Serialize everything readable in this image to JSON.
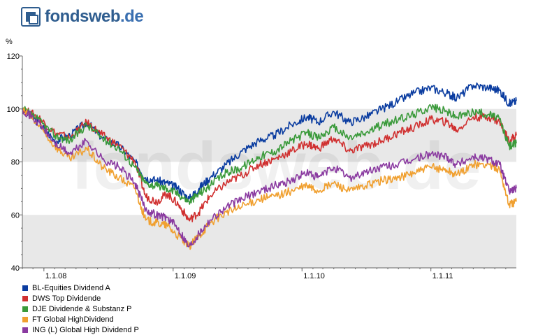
{
  "logo": {
    "brand": "fondsweb",
    "tld": ".de"
  },
  "chart_data": {
    "type": "line",
    "ylabel": "%",
    "ylim": [
      40,
      120
    ],
    "y_ticks": [
      40,
      60,
      80,
      100,
      120
    ],
    "x_ticks": [
      {
        "date": "2008-01-01",
        "label": "1.1.08"
      },
      {
        "date": "2009-01-01",
        "label": "1.1.09"
      },
      {
        "date": "2010-01-01",
        "label": "1.1.10"
      },
      {
        "date": "2011-01-01",
        "label": "1.1.11"
      }
    ],
    "xlim": [
      "2007-11-01",
      "2011-08-31"
    ],
    "grid": "horizontal bands",
    "watermark": "fondsweb.de",
    "legend_position": "bottom-left",
    "series": [
      {
        "name": "BL-Equities Dividend A",
        "color": "#0a3ca0",
        "points": [
          [
            "2007-11-01",
            100
          ],
          [
            "2007-12-15",
            95
          ],
          [
            "2008-02-01",
            88
          ],
          [
            "2008-03-15",
            90
          ],
          [
            "2008-05-01",
            95
          ],
          [
            "2008-06-15",
            89
          ],
          [
            "2008-08-01",
            86
          ],
          [
            "2008-09-15",
            80
          ],
          [
            "2008-10-15",
            74
          ],
          [
            "2008-11-15",
            73
          ],
          [
            "2008-12-15",
            72
          ],
          [
            "2009-01-15",
            70
          ],
          [
            "2009-02-15",
            66
          ],
          [
            "2009-03-15",
            70
          ],
          [
            "2009-04-15",
            74
          ],
          [
            "2009-06-01",
            79
          ],
          [
            "2009-07-15",
            84
          ],
          [
            "2009-09-01",
            88
          ],
          [
            "2009-10-15",
            90
          ],
          [
            "2009-12-01",
            94
          ],
          [
            "2010-01-15",
            97
          ],
          [
            "2010-02-15",
            95
          ],
          [
            "2010-04-01",
            99
          ],
          [
            "2010-05-15",
            95
          ],
          [
            "2010-07-01",
            97
          ],
          [
            "2010-08-15",
            100
          ],
          [
            "2010-10-01",
            103
          ],
          [
            "2010-11-15",
            106
          ],
          [
            "2011-01-01",
            108
          ],
          [
            "2011-02-15",
            106
          ],
          [
            "2011-03-15",
            104
          ],
          [
            "2011-05-01",
            109
          ],
          [
            "2011-06-15",
            108
          ],
          [
            "2011-07-15",
            107
          ],
          [
            "2011-08-10",
            102
          ],
          [
            "2011-08-31",
            103
          ]
        ]
      },
      {
        "name": "DWS Top Dividende",
        "color": "#d03030",
        "points": [
          [
            "2007-11-01",
            100
          ],
          [
            "2007-12-15",
            97
          ],
          [
            "2008-02-01",
            91
          ],
          [
            "2008-03-15",
            89
          ],
          [
            "2008-05-01",
            95
          ],
          [
            "2008-06-15",
            90
          ],
          [
            "2008-08-01",
            86
          ],
          [
            "2008-09-15",
            80
          ],
          [
            "2008-10-15",
            67
          ],
          [
            "2008-11-15",
            65
          ],
          [
            "2008-12-15",
            68
          ],
          [
            "2009-01-15",
            64
          ],
          [
            "2009-02-15",
            58
          ],
          [
            "2009-03-15",
            61
          ],
          [
            "2009-04-15",
            67
          ],
          [
            "2009-06-01",
            72
          ],
          [
            "2009-07-15",
            75
          ],
          [
            "2009-09-01",
            79
          ],
          [
            "2009-10-15",
            81
          ],
          [
            "2009-12-01",
            84
          ],
          [
            "2010-01-15",
            87
          ],
          [
            "2010-02-15",
            85
          ],
          [
            "2010-04-01",
            89
          ],
          [
            "2010-05-15",
            84
          ],
          [
            "2010-07-01",
            86
          ],
          [
            "2010-08-15",
            88
          ],
          [
            "2010-10-01",
            91
          ],
          [
            "2010-11-15",
            93
          ],
          [
            "2011-01-01",
            96
          ],
          [
            "2011-02-15",
            95
          ],
          [
            "2011-03-15",
            92
          ],
          [
            "2011-05-01",
            97
          ],
          [
            "2011-06-15",
            97
          ],
          [
            "2011-07-15",
            95
          ],
          [
            "2011-08-10",
            88
          ],
          [
            "2011-08-31",
            90
          ]
        ]
      },
      {
        "name": "DJE Dividende & Substanz P",
        "color": "#3a9a3a",
        "points": [
          [
            "2007-11-01",
            100
          ],
          [
            "2007-12-15",
            96
          ],
          [
            "2008-02-01",
            90
          ],
          [
            "2008-03-15",
            88
          ],
          [
            "2008-05-01",
            94
          ],
          [
            "2008-06-15",
            89
          ],
          [
            "2008-08-01",
            85
          ],
          [
            "2008-09-15",
            78
          ],
          [
            "2008-10-15",
            72
          ],
          [
            "2008-11-15",
            71
          ],
          [
            "2008-12-15",
            70
          ],
          [
            "2009-01-15",
            68
          ],
          [
            "2009-02-15",
            65
          ],
          [
            "2009-03-15",
            68
          ],
          [
            "2009-04-15",
            71
          ],
          [
            "2009-06-01",
            76
          ],
          [
            "2009-07-15",
            78
          ],
          [
            "2009-09-01",
            82
          ],
          [
            "2009-10-15",
            84
          ],
          [
            "2009-12-01",
            88
          ],
          [
            "2010-01-15",
            91
          ],
          [
            "2010-02-15",
            89
          ],
          [
            "2010-04-01",
            93
          ],
          [
            "2010-05-15",
            89
          ],
          [
            "2010-07-01",
            91
          ],
          [
            "2010-08-15",
            94
          ],
          [
            "2010-10-01",
            96
          ],
          [
            "2010-11-15",
            98
          ],
          [
            "2011-01-01",
            101
          ],
          [
            "2011-02-15",
            99
          ],
          [
            "2011-03-15",
            97
          ],
          [
            "2011-05-01",
            99
          ],
          [
            "2011-06-15",
            98
          ],
          [
            "2011-07-15",
            96
          ],
          [
            "2011-08-10",
            86
          ],
          [
            "2011-08-31",
            87
          ]
        ]
      },
      {
        "name": "FT Global HighDividend",
        "color": "#f0a030",
        "points": [
          [
            "2007-11-01",
            100
          ],
          [
            "2007-12-15",
            94
          ],
          [
            "2008-02-01",
            86
          ],
          [
            "2008-03-15",
            81
          ],
          [
            "2008-05-01",
            85
          ],
          [
            "2008-06-15",
            78
          ],
          [
            "2008-08-01",
            74
          ],
          [
            "2008-09-15",
            70
          ],
          [
            "2008-10-15",
            58
          ],
          [
            "2008-11-15",
            57
          ],
          [
            "2008-12-15",
            56
          ],
          [
            "2009-01-15",
            52
          ],
          [
            "2009-02-15",
            48
          ],
          [
            "2009-03-15",
            52
          ],
          [
            "2009-04-15",
            57
          ],
          [
            "2009-06-01",
            61
          ],
          [
            "2009-07-15",
            63
          ],
          [
            "2009-09-01",
            66
          ],
          [
            "2009-10-15",
            67
          ],
          [
            "2009-12-01",
            69
          ],
          [
            "2010-01-15",
            71
          ],
          [
            "2010-02-15",
            69
          ],
          [
            "2010-04-01",
            72
          ],
          [
            "2010-05-15",
            69
          ],
          [
            "2010-07-01",
            71
          ],
          [
            "2010-08-15",
            73
          ],
          [
            "2010-10-01",
            74
          ],
          [
            "2010-11-15",
            76
          ],
          [
            "2011-01-01",
            78
          ],
          [
            "2011-02-15",
            77
          ],
          [
            "2011-03-15",
            75
          ],
          [
            "2011-05-01",
            79
          ],
          [
            "2011-06-15",
            79
          ],
          [
            "2011-07-15",
            77
          ],
          [
            "2011-08-10",
            64
          ],
          [
            "2011-08-31",
            65
          ]
        ]
      },
      {
        "name": "ING (L) Global High Dividend P",
        "color": "#8a3aa0",
        "points": [
          [
            "2007-11-01",
            100
          ],
          [
            "2007-12-15",
            95
          ],
          [
            "2008-02-01",
            87
          ],
          [
            "2008-03-15",
            83
          ],
          [
            "2008-05-01",
            88
          ],
          [
            "2008-06-15",
            81
          ],
          [
            "2008-08-01",
            78
          ],
          [
            "2008-09-15",
            72
          ],
          [
            "2008-10-15",
            62
          ],
          [
            "2008-11-15",
            60
          ],
          [
            "2008-12-15",
            59
          ],
          [
            "2009-01-15",
            55
          ],
          [
            "2009-02-15",
            48
          ],
          [
            "2009-03-15",
            53
          ],
          [
            "2009-04-15",
            58
          ],
          [
            "2009-06-01",
            63
          ],
          [
            "2009-07-15",
            66
          ],
          [
            "2009-09-01",
            69
          ],
          [
            "2009-10-15",
            71
          ],
          [
            "2009-12-01",
            73
          ],
          [
            "2010-01-15",
            76
          ],
          [
            "2010-02-15",
            74
          ],
          [
            "2010-04-01",
            78
          ],
          [
            "2010-05-15",
            74
          ],
          [
            "2010-07-01",
            76
          ],
          [
            "2010-08-15",
            78
          ],
          [
            "2010-10-01",
            79
          ],
          [
            "2010-11-15",
            81
          ],
          [
            "2011-01-01",
            83
          ],
          [
            "2011-02-15",
            82
          ],
          [
            "2011-03-15",
            79
          ],
          [
            "2011-05-01",
            82
          ],
          [
            "2011-06-15",
            81
          ],
          [
            "2011-07-15",
            79
          ],
          [
            "2011-08-10",
            69
          ],
          [
            "2011-08-31",
            70
          ]
        ]
      }
    ]
  }
}
